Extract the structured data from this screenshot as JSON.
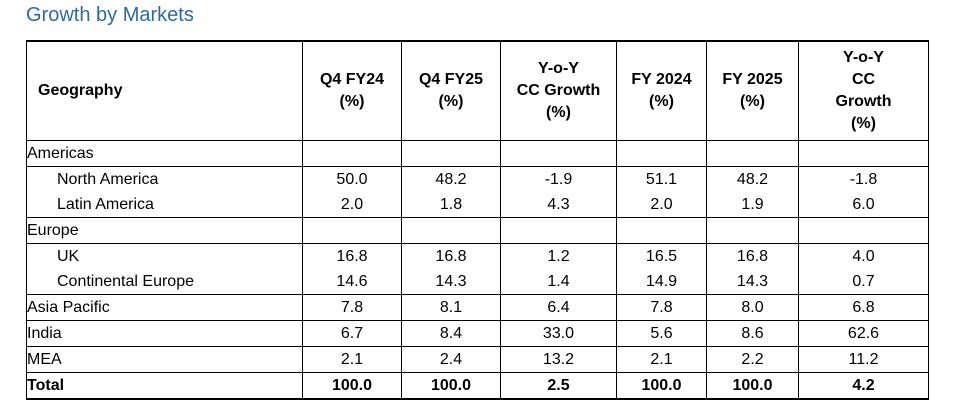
{
  "title": "Growth by Markets",
  "table": {
    "headers": {
      "geography": "Geography",
      "q4fy24": [
        "Q4 FY24",
        "(%)"
      ],
      "q4fy25": [
        "Q4 FY25",
        "(%)"
      ],
      "yoy_q": [
        "Y-o-Y",
        "CC Growth",
        "(%)"
      ],
      "fy2024": [
        "FY 2024",
        "(%)"
      ],
      "fy2025": [
        "FY 2025",
        "(%)"
      ],
      "yoy_fy": [
        "Y-o-Y",
        "CC",
        "Growth",
        "(%)"
      ]
    },
    "rows": [
      {
        "label": "Americas",
        "values": [
          "",
          "",
          "",
          "",
          "",
          ""
        ]
      },
      {
        "label": "North America",
        "values": [
          "50.0",
          "48.2",
          "-1.9",
          "51.1",
          "48.2",
          "-1.8"
        ]
      },
      {
        "label": "Latin America",
        "values": [
          "2.0",
          "1.8",
          "4.3",
          "2.0",
          "1.9",
          "6.0"
        ]
      },
      {
        "label": "Europe",
        "values": [
          "",
          "",
          "",
          "",
          "",
          ""
        ]
      },
      {
        "label": "UK",
        "values": [
          "16.8",
          "16.8",
          "1.2",
          "16.5",
          "16.8",
          "4.0"
        ]
      },
      {
        "label": "Continental Europe",
        "values": [
          "14.6",
          "14.3",
          "1.4",
          "14.9",
          "14.3",
          "0.7"
        ]
      },
      {
        "label": "Asia Pacific",
        "values": [
          "7.8",
          "8.1",
          "6.4",
          "7.8",
          "8.0",
          "6.8"
        ]
      },
      {
        "label": "India",
        "values": [
          "6.7",
          "8.4",
          "33.0",
          "5.6",
          "8.6",
          "62.6"
        ]
      },
      {
        "label": "MEA",
        "values": [
          "2.1",
          "2.4",
          "13.2",
          "2.1",
          "2.2",
          "11.2"
        ]
      },
      {
        "label": "Total",
        "values": [
          "100.0",
          "100.0",
          "2.5",
          "100.0",
          "100.0",
          "4.2"
        ]
      }
    ]
  }
}
